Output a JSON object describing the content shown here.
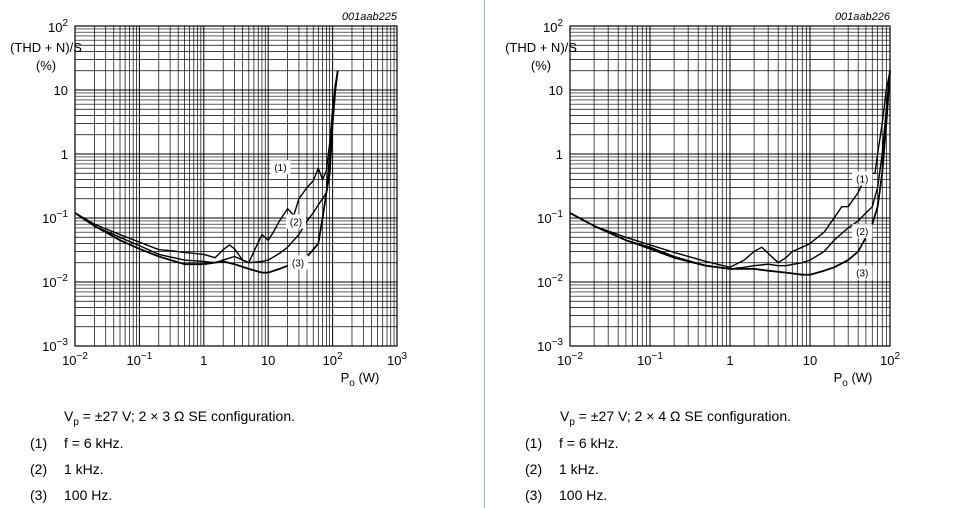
{
  "chart_data": [
    {
      "type": "line",
      "id": "001aab225",
      "x_scale": "log",
      "y_scale": "log",
      "xlim": [
        0.01,
        1000
      ],
      "ylim": [
        0.001,
        100
      ],
      "xlabel_pre": "P",
      "xlabel_sub": "o",
      "xlabel_post": " (W)",
      "ylabel_line1": "(THD + N)/S",
      "ylabel_line2": "(%)",
      "x_ticks": [
        {
          "base": "10",
          "exp": "−2"
        },
        {
          "base": "10",
          "exp": "−1"
        },
        {
          "base": "1",
          "exp": ""
        },
        {
          "base": "10",
          "exp": ""
        },
        {
          "base": "10",
          "exp": "2"
        },
        {
          "base": "10",
          "exp": "3"
        }
      ],
      "y_ticks": [
        {
          "base": "10",
          "exp": "−3"
        },
        {
          "base": "10",
          "exp": "−2"
        },
        {
          "base": "10",
          "exp": "−1"
        },
        {
          "base": "1",
          "exp": ""
        },
        {
          "base": "10",
          "exp": ""
        },
        {
          "base": "10",
          "exp": "2"
        }
      ],
      "grid": true,
      "series": [
        {
          "name": "(1)",
          "x": [
            0.01,
            0.02,
            0.05,
            0.1,
            0.2,
            0.3,
            0.5,
            1,
            1.5,
            2,
            2.5,
            3,
            4,
            5,
            6,
            8,
            10,
            12,
            15,
            20,
            25,
            30,
            40,
            50,
            60,
            70,
            80,
            90,
            100,
            110,
            120
          ],
          "y": [
            0.12,
            0.08,
            0.055,
            0.042,
            0.032,
            0.031,
            0.029,
            0.027,
            0.024,
            0.032,
            0.038,
            0.033,
            0.022,
            0.02,
            0.03,
            0.055,
            0.045,
            0.06,
            0.09,
            0.14,
            0.11,
            0.2,
            0.3,
            0.38,
            0.6,
            0.4,
            0.55,
            1.5,
            5,
            12,
            20
          ]
        },
        {
          "name": "(2)",
          "x": [
            0.01,
            0.02,
            0.05,
            0.1,
            0.2,
            0.5,
            1,
            1.5,
            2,
            3,
            5,
            8,
            10,
            15,
            20,
            25,
            30,
            40,
            50,
            60,
            70,
            80,
            90,
            100,
            110,
            120
          ],
          "y": [
            0.12,
            0.075,
            0.05,
            0.037,
            0.027,
            0.022,
            0.021,
            0.02,
            0.022,
            0.025,
            0.02,
            0.021,
            0.022,
            0.028,
            0.035,
            0.045,
            0.055,
            0.09,
            0.12,
            0.16,
            0.2,
            0.25,
            1,
            4,
            10,
            20
          ]
        },
        {
          "name": "(3)",
          "x": [
            0.01,
            0.02,
            0.05,
            0.1,
            0.2,
            0.5,
            1,
            2,
            3,
            5,
            8,
            10,
            15,
            20,
            30,
            40,
            50,
            60,
            70,
            80,
            90,
            100,
            110,
            120
          ],
          "y": [
            0.12,
            0.075,
            0.045,
            0.033,
            0.025,
            0.019,
            0.019,
            0.021,
            0.019,
            0.016,
            0.014,
            0.014,
            0.016,
            0.018,
            0.021,
            0.025,
            0.032,
            0.04,
            0.1,
            0.25,
            0.5,
            3,
            10,
            20
          ]
        }
      ],
      "annotations": [
        {
          "text": "(1)",
          "x": 15.5,
          "y": 0.6
        },
        {
          "text": "(2)",
          "x": 27,
          "y": 0.085
        },
        {
          "text": "(3)",
          "x": 29,
          "y": 0.0195
        }
      ]
    },
    {
      "type": "line",
      "id": "001aab226",
      "x_scale": "log",
      "y_scale": "log",
      "xlim": [
        0.01,
        100
      ],
      "ylim": [
        0.001,
        100
      ],
      "xlabel_pre": "P",
      "xlabel_sub": "o",
      "xlabel_post": " (W)",
      "ylabel_line1": "(THD + N)/S",
      "ylabel_line2": "(%)",
      "x_ticks": [
        {
          "base": "10",
          "exp": "−2"
        },
        {
          "base": "10",
          "exp": "−1"
        },
        {
          "base": "1",
          "exp": ""
        },
        {
          "base": "10",
          "exp": ""
        },
        {
          "base": "10",
          "exp": "2"
        }
      ],
      "y_ticks": [
        {
          "base": "10",
          "exp": "−3"
        },
        {
          "base": "10",
          "exp": "−2"
        },
        {
          "base": "10",
          "exp": "−1"
        },
        {
          "base": "1",
          "exp": ""
        },
        {
          "base": "10",
          "exp": ""
        },
        {
          "base": "10",
          "exp": "2"
        }
      ],
      "grid": true,
      "series": [
        {
          "name": "(1)",
          "x": [
            0.01,
            0.02,
            0.05,
            0.1,
            0.2,
            0.5,
            1,
            1.5,
            2,
            2.5,
            3,
            4,
            5,
            6,
            8,
            10,
            15,
            20,
            25,
            30,
            40,
            50,
            60,
            65,
            70,
            80,
            90,
            100
          ],
          "y": [
            0.12,
            0.075,
            0.05,
            0.038,
            0.029,
            0.021,
            0.017,
            0.022,
            0.03,
            0.035,
            0.028,
            0.02,
            0.024,
            0.03,
            0.035,
            0.04,
            0.06,
            0.1,
            0.15,
            0.15,
            0.25,
            0.45,
            0.5,
            0.5,
            1,
            3,
            10,
            20
          ]
        },
        {
          "name": "(2)",
          "x": [
            0.01,
            0.02,
            0.05,
            0.1,
            0.2,
            0.5,
            1,
            1.5,
            2,
            3,
            4,
            5,
            8,
            10,
            15,
            20,
            30,
            40,
            50,
            60,
            70,
            80,
            90,
            100
          ],
          "y": [
            0.12,
            0.075,
            0.045,
            0.035,
            0.025,
            0.018,
            0.016,
            0.017,
            0.018,
            0.019,
            0.018,
            0.018,
            0.02,
            0.022,
            0.03,
            0.045,
            0.07,
            0.09,
            0.12,
            0.15,
            0.3,
            1,
            5,
            20
          ]
        },
        {
          "name": "(3)",
          "x": [
            0.01,
            0.02,
            0.05,
            0.1,
            0.2,
            0.5,
            1,
            2,
            3,
            5,
            8,
            10,
            15,
            20,
            30,
            40,
            50,
            60,
            70,
            80,
            90,
            100
          ],
          "y": [
            0.12,
            0.075,
            0.045,
            0.033,
            0.024,
            0.018,
            0.016,
            0.016,
            0.015,
            0.014,
            0.013,
            0.013,
            0.015,
            0.017,
            0.022,
            0.03,
            0.05,
            0.08,
            0.15,
            0.5,
            3,
            20
          ]
        }
      ],
      "annotations": [
        {
          "text": "(1)",
          "x": 45,
          "y": 0.4
        },
        {
          "text": "(2)",
          "x": 45,
          "y": 0.06
        },
        {
          "text": "(3)",
          "x": 45,
          "y": 0.0135
        }
      ]
    }
  ],
  "captions": [
    {
      "config_pre": "V",
      "config_sub": "p",
      "config_post": " = ±27 V; 2 × 3 Ω SE configuration.",
      "items": [
        {
          "num": "(1)",
          "text": "f = 6 kHz."
        },
        {
          "num": "(2)",
          "text": "1 kHz."
        },
        {
          "num": "(3)",
          "text": "100 Hz."
        }
      ]
    },
    {
      "config_pre": "V",
      "config_sub": "p",
      "config_post": " = ±27 V; 2 × 4 Ω SE configuration.",
      "items": [
        {
          "num": "(1)",
          "text": "f = 6 kHz."
        },
        {
          "num": "(2)",
          "text": "1 kHz."
        },
        {
          "num": "(3)",
          "text": "100 Hz."
        }
      ]
    }
  ]
}
